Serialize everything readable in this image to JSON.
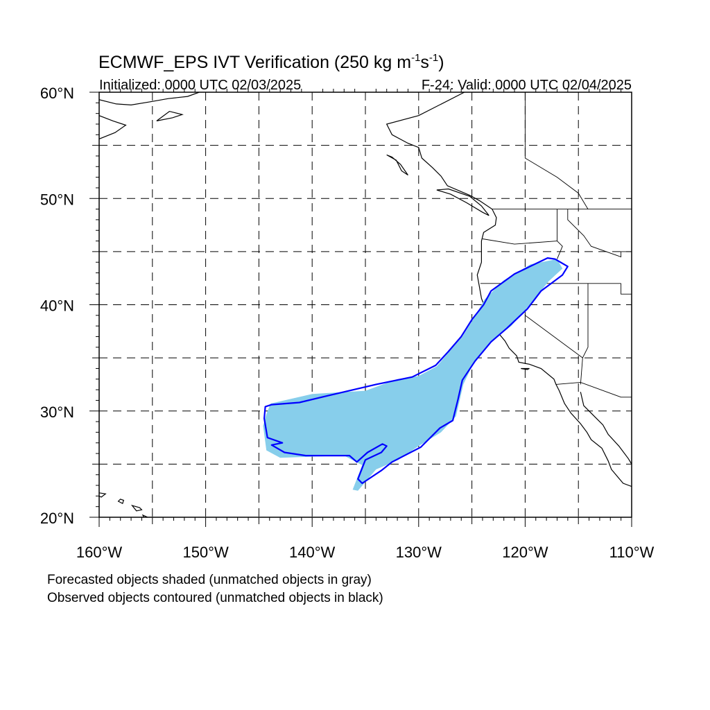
{
  "title": {
    "main": "ECMWF_EPS IVT Verification (250 kg m",
    "sup1": "-1",
    "mid": "s",
    "sup2": "-1",
    "end": ")"
  },
  "subtitle_left": "Initialized: 0000 UTC 02/03/2025",
  "subtitle_right": "F-24: Valid: 0000 UTC 02/04/2025",
  "captions": {
    "line1": "Forecasted objects shaded (unmatched objects in gray)",
    "line2": "Observed objects contoured (unmatched objects in black)"
  },
  "colors": {
    "forecast_fill": "#87ceeb",
    "observed_contour": "#0000ff",
    "coastline": "#000000",
    "grid": "#000000"
  },
  "map": {
    "lon_range": [
      -160,
      -110
    ],
    "lat_range": [
      20,
      60
    ],
    "lon_ticks": [
      {
        "lon": -160,
        "label": "160°W"
      },
      {
        "lon": -150,
        "label": "150°W"
      },
      {
        "lon": -140,
        "label": "140°W"
      },
      {
        "lon": -130,
        "label": "130°W"
      },
      {
        "lon": -120,
        "label": "120°W"
      },
      {
        "lon": -110,
        "label": "110°W"
      }
    ],
    "lat_ticks": [
      {
        "lat": 60,
        "label": "60°N"
      },
      {
        "lat": 50,
        "label": "50°N"
      },
      {
        "lat": 40,
        "label": "40°N"
      },
      {
        "lat": 30,
        "label": "30°N"
      },
      {
        "lat": 20,
        "label": "20°N"
      }
    ],
    "grid_lons": [
      -155,
      -150,
      -145,
      -140,
      -135,
      -130,
      -125,
      -120,
      -115
    ],
    "grid_lats": [
      25,
      30,
      35,
      40,
      45,
      50,
      55
    ]
  },
  "forecast_object": [
    [
      -143.9,
      30.7
    ],
    [
      -140.0,
      31.6
    ],
    [
      -135.0,
      31.9
    ],
    [
      -132.0,
      33.0
    ],
    [
      -130.0,
      33.3
    ],
    [
      -128.3,
      34.2
    ],
    [
      -127.2,
      35.5
    ],
    [
      -125.9,
      37.0
    ],
    [
      -124.9,
      38.6
    ],
    [
      -123.8,
      40.5
    ],
    [
      -122.0,
      42.3
    ],
    [
      -119.5,
      43.8
    ],
    [
      -117.0,
      44.3
    ],
    [
      -116.5,
      43.4
    ],
    [
      -117.8,
      42.2
    ],
    [
      -119.4,
      40.2
    ],
    [
      -121.3,
      38.0
    ],
    [
      -123.3,
      36.5
    ],
    [
      -125.0,
      34.2
    ],
    [
      -125.8,
      32.5
    ],
    [
      -126.5,
      29.5
    ],
    [
      -127.9,
      28.0
    ],
    [
      -130.0,
      26.7
    ],
    [
      -131.9,
      25.4
    ],
    [
      -134.0,
      24.5
    ],
    [
      -135.7,
      22.5
    ],
    [
      -136.2,
      22.6
    ],
    [
      -135.3,
      24.9
    ],
    [
      -137.0,
      25.8
    ],
    [
      -140.0,
      25.7
    ],
    [
      -143.0,
      25.6
    ],
    [
      -144.3,
      26.3
    ],
    [
      -144.6,
      28.6
    ],
    [
      -144.3,
      29.7
    ]
  ],
  "observed_object": [
    [
      -143.8,
      30.6
    ],
    [
      -141.2,
      30.8
    ],
    [
      -138.7,
      31.4
    ],
    [
      -134.0,
      32.5
    ],
    [
      -130.6,
      33.2
    ],
    [
      -128.4,
      34.3
    ],
    [
      -127.2,
      35.6
    ],
    [
      -126.0,
      37.0
    ],
    [
      -125.0,
      38.6
    ],
    [
      -123.9,
      40.0
    ],
    [
      -123.2,
      41.3
    ],
    [
      -121.0,
      42.9
    ],
    [
      -117.9,
      44.4
    ],
    [
      -117.2,
      44.3
    ],
    [
      -116.0,
      43.6
    ],
    [
      -116.5,
      42.8
    ],
    [
      -118.5,
      41.3
    ],
    [
      -119.8,
      39.6
    ],
    [
      -121.7,
      37.8
    ],
    [
      -123.2,
      36.5
    ],
    [
      -124.7,
      34.7
    ],
    [
      -125.9,
      32.9
    ],
    [
      -126.3,
      31.1
    ],
    [
      -126.8,
      29.1
    ],
    [
      -128.0,
      28.4
    ],
    [
      -129.8,
      26.6
    ],
    [
      -132.5,
      25.2
    ],
    [
      -133.5,
      24.4
    ],
    [
      -135.3,
      23.2
    ],
    [
      -135.7,
      23.6
    ],
    [
      -135.0,
      25.4
    ],
    [
      -133.5,
      26.1
    ],
    [
      -133.0,
      26.7
    ],
    [
      -133.4,
      26.9
    ],
    [
      -134.8,
      26.1
    ],
    [
      -135.8,
      25.2
    ],
    [
      -136.5,
      25.8
    ],
    [
      -138.5,
      25.8
    ],
    [
      -140.6,
      25.8
    ],
    [
      -142.6,
      26.1
    ],
    [
      -143.8,
      26.8
    ],
    [
      -142.8,
      27.0
    ],
    [
      -144.2,
      27.5
    ],
    [
      -144.5,
      29.3
    ],
    [
      -144.4,
      30.4
    ]
  ],
  "coastlines": {
    "north_america": [
      [
        -125.7,
        60.0
      ],
      [
        -130.0,
        57.8
      ],
      [
        -133.0,
        57.0
      ],
      [
        -132.5,
        56.0
      ],
      [
        -131.0,
        55.2
      ],
      [
        -130.0,
        54.8
      ],
      [
        -129.7,
        53.8
      ],
      [
        -128.7,
        52.9
      ],
      [
        -127.9,
        52.1
      ],
      [
        -127.3,
        51.2
      ],
      [
        -125.2,
        50.3
      ],
      [
        -124.3,
        49.8
      ],
      [
        -123.1,
        49.0
      ],
      [
        -122.7,
        48.2
      ],
      [
        -122.8,
        47.5
      ],
      [
        -123.9,
        46.8
      ],
      [
        -124.1,
        46.0
      ],
      [
        -124.1,
        45.0
      ],
      [
        -124.1,
        44.0
      ],
      [
        -124.5,
        42.8
      ],
      [
        -124.3,
        41.7
      ],
      [
        -124.1,
        40.6
      ],
      [
        -123.8,
        39.8
      ],
      [
        -123.2,
        38.6
      ],
      [
        -122.5,
        37.8
      ],
      [
        -122.4,
        37.2
      ],
      [
        -121.9,
        36.6
      ],
      [
        -121.5,
        35.9
      ],
      [
        -120.8,
        35.2
      ],
      [
        -120.6,
        34.6
      ],
      [
        -119.6,
        34.4
      ],
      [
        -118.5,
        34.0
      ],
      [
        -117.3,
        33.0
      ],
      [
        -117.1,
        32.5
      ],
      [
        -116.8,
        31.9
      ],
      [
        -116.3,
        30.7
      ],
      [
        -115.7,
        29.8
      ],
      [
        -114.8,
        28.8
      ],
      [
        -114.2,
        28.0
      ],
      [
        -113.8,
        27.3
      ],
      [
        -112.8,
        26.5
      ],
      [
        -112.2,
        25.3
      ],
      [
        -111.9,
        24.5
      ],
      [
        -110.8,
        23.2
      ],
      [
        -110.0,
        22.9
      ]
    ],
    "mainland_gulf": [
      [
        -114.8,
        31.8
      ],
      [
        -114.5,
        30.5
      ],
      [
        -113.5,
        29.5
      ],
      [
        -112.7,
        28.7
      ],
      [
        -112.2,
        27.8
      ],
      [
        -111.2,
        26.7
      ],
      [
        -110.3,
        25.5
      ],
      [
        -110.0,
        25.0
      ]
    ],
    "vancouver_island": [
      [
        -128.3,
        50.8
      ],
      [
        -127.0,
        50.4
      ],
      [
        -125.5,
        49.6
      ],
      [
        -124.0,
        48.7
      ],
      [
        -123.4,
        48.4
      ],
      [
        -124.1,
        49.3
      ],
      [
        -125.2,
        50.2
      ],
      [
        -127.2,
        50.9
      ],
      [
        -128.3,
        50.8
      ]
    ],
    "haida_gwaii": [
      [
        -133.0,
        54.1
      ],
      [
        -132.1,
        53.6
      ],
      [
        -131.6,
        52.6
      ],
      [
        -131.0,
        52.2
      ],
      [
        -131.7,
        53.2
      ],
      [
        -132.5,
        53.9
      ],
      [
        -133.0,
        54.1
      ]
    ],
    "alaska_pen": [
      [
        -160.0,
        55.6
      ],
      [
        -158.5,
        56.2
      ],
      [
        -157.5,
        56.9
      ],
      [
        -158.7,
        57.3
      ],
      [
        -160.0,
        57.8
      ]
    ],
    "kodiak": [
      [
        -154.6,
        57.3
      ],
      [
        -153.1,
        57.6
      ],
      [
        -152.2,
        57.9
      ],
      [
        -153.4,
        58.2
      ],
      [
        -154.6,
        57.3
      ]
    ],
    "alaska_north": [
      [
        -160.0,
        59.3
      ],
      [
        -158.4,
        58.9
      ],
      [
        -157.0,
        58.8
      ],
      [
        -155.2,
        59.1
      ],
      [
        -153.5,
        59.4
      ],
      [
        -151.7,
        59.6
      ],
      [
        -150.6,
        60.0
      ]
    ],
    "hawaii_1": [
      [
        -160.3,
        22.1
      ],
      [
        -159.8,
        21.9
      ],
      [
        -159.4,
        22.2
      ],
      [
        -160.0,
        22.3
      ],
      [
        -160.3,
        22.1
      ]
    ],
    "hawaii_2": [
      [
        -158.2,
        21.5
      ],
      [
        -157.8,
        21.3
      ],
      [
        -157.7,
        21.6
      ],
      [
        -158.0,
        21.7
      ],
      [
        -158.2,
        21.5
      ]
    ],
    "hawaii_3": [
      [
        -156.9,
        21.1
      ],
      [
        -156.2,
        20.9
      ],
      [
        -156.0,
        20.7
      ],
      [
        -156.5,
        20.6
      ],
      [
        -156.9,
        21.1
      ]
    ],
    "hawaii_4": [
      [
        -155.9,
        20.2
      ],
      [
        -155.0,
        19.8
      ],
      [
        -154.9,
        19.5
      ],
      [
        -155.5,
        19.3
      ],
      [
        -155.9,
        20.2
      ]
    ],
    "channel_islands": [
      [
        -120.4,
        34.0
      ],
      [
        -119.8,
        33.9
      ],
      [
        -119.6,
        34.0
      ],
      [
        -120.4,
        34.0
      ]
    ]
  },
  "borders": {
    "canada_us": [
      [
        -123.1,
        49.0
      ],
      [
        -110.0,
        49.0
      ]
    ],
    "or_wa": [
      [
        -124.0,
        46.2
      ],
      [
        -121.0,
        45.7
      ],
      [
        -117.0,
        46.0
      ]
    ],
    "ca_or": [
      [
        -124.2,
        42.0
      ],
      [
        -117.0,
        42.0
      ],
      [
        -111.0,
        42.0
      ]
    ],
    "ca_nv": [
      [
        -120.0,
        42.0
      ],
      [
        -120.0,
        39.0
      ],
      [
        -114.6,
        35.0
      ]
    ],
    "id_wa": [
      [
        -117.0,
        49.0
      ],
      [
        -117.0,
        46.0
      ],
      [
        -116.5,
        45.5
      ],
      [
        -117.0,
        44.3
      ]
    ],
    "az_nv": [
      [
        -114.1,
        42.0
      ],
      [
        -114.1,
        36.0
      ],
      [
        -114.6,
        35.0
      ],
      [
        -114.8,
        32.5
      ]
    ],
    "us_mexico": [
      [
        -117.1,
        32.5
      ],
      [
        -114.8,
        32.7
      ],
      [
        -111.0,
        31.3
      ],
      [
        -110.0,
        31.3
      ]
    ],
    "ut_line": [
      [
        -111.0,
        42.0
      ],
      [
        -111.0,
        41.0
      ],
      [
        -110.0,
        41.0
      ]
    ],
    "id_mt": [
      [
        -116.0,
        49.0
      ],
      [
        -116.0,
        48.0
      ],
      [
        -114.5,
        46.5
      ],
      [
        -113.8,
        45.5
      ],
      [
        -111.0,
        44.5
      ],
      [
        -111.0,
        45.0
      ],
      [
        -110.0,
        45.0
      ]
    ],
    "bc_ab": [
      [
        -120.0,
        60.0
      ],
      [
        -120.0,
        53.8
      ],
      [
        -117.0,
        52.0
      ],
      [
        -115.0,
        50.5
      ],
      [
        -114.1,
        49.0
      ]
    ]
  }
}
